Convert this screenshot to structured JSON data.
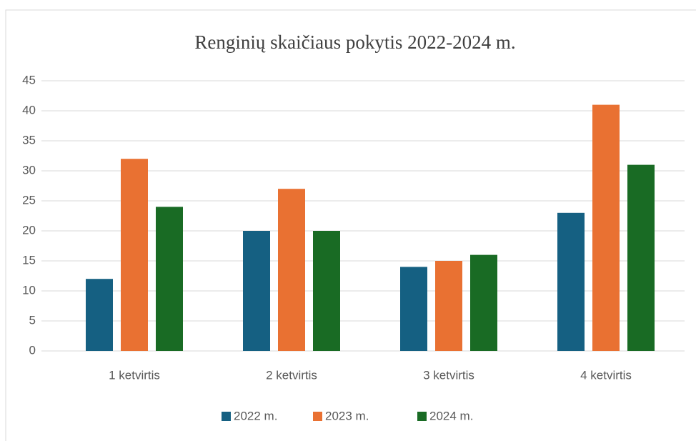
{
  "chart_data": {
    "type": "bar",
    "title": "Renginių skaičiaus pokytis 2022-2024  m.",
    "categories": [
      "1 ketvirtis",
      "2 ketvirtis",
      "3 ketvirtis",
      "4 ketvirtis"
    ],
    "series": [
      {
        "name": "2022 m.",
        "color": "#156082",
        "values": [
          12,
          20,
          14,
          23
        ]
      },
      {
        "name": "2023 m.",
        "color": "#e97132",
        "values": [
          32,
          27,
          15,
          41
        ]
      },
      {
        "name": "2024 m.",
        "color": "#196b24",
        "values": [
          24,
          20,
          16,
          31
        ]
      }
    ],
    "ylim": [
      0,
      45
    ],
    "yticks": [
      0,
      5,
      10,
      15,
      20,
      25,
      30,
      35,
      40,
      45
    ],
    "grid": true,
    "legend": "bottom"
  }
}
